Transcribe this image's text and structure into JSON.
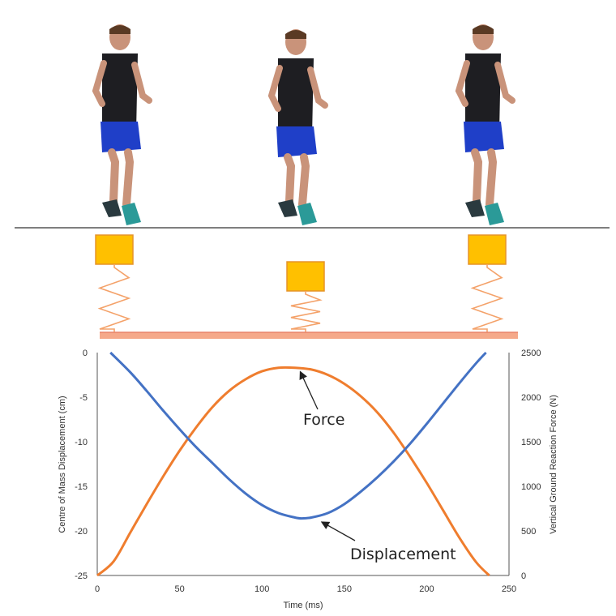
{
  "colors": {
    "force": "#ef7d2e",
    "displacement": "#4472c4",
    "mass_fill": "#ffc000",
    "spring": "#f4a26a",
    "platform": "#f5a98a",
    "shirt": "#1e1e22",
    "shorts": "#1f3fc8",
    "skin": "#c9937a",
    "shoe": "#2b9a98"
  },
  "icons": [
    "jumper-figure",
    "spring-mass-model"
  ],
  "chart_data": {
    "type": "line",
    "x": [
      0,
      10,
      20,
      30,
      40,
      50,
      60,
      70,
      80,
      90,
      100,
      110,
      120,
      130,
      140,
      150,
      160,
      170,
      180,
      190,
      200,
      210,
      220,
      230,
      238
    ],
    "series": [
      {
        "name": "Force",
        "axis": "right",
        "values": [
          0,
          160,
          480,
          800,
          1110,
          1400,
          1660,
          1890,
          2070,
          2200,
          2290,
          2330,
          2330,
          2310,
          2250,
          2150,
          2010,
          1830,
          1600,
          1330,
          1040,
          730,
          420,
          150,
          0
        ]
      },
      {
        "name": "Displacement",
        "axis": "left",
        "x": [
          8,
          20,
          30,
          40,
          50,
          60,
          70,
          80,
          90,
          100,
          110,
          120,
          124,
          130,
          140,
          150,
          160,
          170,
          180,
          190,
          200,
          210,
          220,
          230,
          236
        ],
        "values": [
          0,
          -2.2,
          -4.3,
          -6.5,
          -8.6,
          -10.6,
          -12.4,
          -14.2,
          -15.8,
          -17.1,
          -18.0,
          -18.5,
          -18.6,
          -18.5,
          -18.0,
          -17.0,
          -15.6,
          -14.0,
          -12.2,
          -10.2,
          -8.0,
          -5.7,
          -3.4,
          -1.2,
          0
        ]
      }
    ],
    "xlabel": "Time (ms)",
    "ylabel": "Centre of Mass Displacement (cm)",
    "y2label": "Vertical Ground Reaction Force (N)",
    "xlim": [
      0,
      250
    ],
    "ylim": [
      -25,
      0
    ],
    "y2lim": [
      0,
      2500
    ],
    "xticks": [
      "0",
      "50",
      "100",
      "150",
      "200",
      "250"
    ],
    "yticks": [
      "0",
      "-5",
      "-10",
      "-15",
      "-20",
      "-25"
    ],
    "y2ticks": [
      "2500",
      "2000",
      "1500",
      "1000",
      "500",
      "0"
    ],
    "annotations": [
      {
        "text": "Force",
        "series": "Force",
        "at_x": 120
      },
      {
        "text": "Displacement",
        "series": "Displacement",
        "at_x": 135
      }
    ],
    "grid": false
  }
}
